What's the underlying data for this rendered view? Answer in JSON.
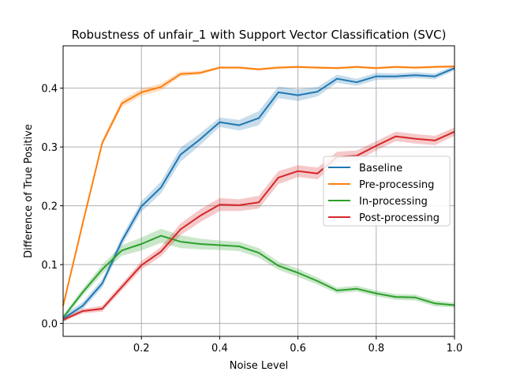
{
  "chart_data": {
    "type": "line",
    "title": "Robustness of unfair_1 with Support Vector Classification (SVC)",
    "xlabel": "Noise Level",
    "ylabel": "Difference of True Positive",
    "xlim": [
      0.0,
      1.0
    ],
    "ylim": [
      -0.022,
      0.472
    ],
    "xticks": [
      0.2,
      0.4,
      0.6,
      0.8,
      1.0
    ],
    "xtick_labels": [
      "0.2",
      "0.4",
      "0.6",
      "0.8",
      "1.0"
    ],
    "yticks": [
      0.0,
      0.1,
      0.2,
      0.3,
      0.4
    ],
    "ytick_labels": [
      "0.0",
      "0.1",
      "0.2",
      "0.3",
      "0.4"
    ],
    "grid": true,
    "legend_position": "center-right",
    "x": [
      0.0,
      0.05,
      0.1,
      0.15,
      0.2,
      0.25,
      0.3,
      0.35,
      0.4,
      0.45,
      0.5,
      0.55,
      0.6,
      0.65,
      0.7,
      0.75,
      0.8,
      0.85,
      0.9,
      0.95,
      1.0
    ],
    "series": [
      {
        "name": "Baseline",
        "color": "#1f77b4",
        "values": [
          0.008,
          0.03,
          0.068,
          0.14,
          0.199,
          0.231,
          0.287,
          0.313,
          0.342,
          0.337,
          0.349,
          0.393,
          0.388,
          0.394,
          0.416,
          0.41,
          0.42,
          0.42,
          0.422,
          0.42,
          0.434
        ],
        "band": [
          0.006,
          0.006,
          0.007,
          0.008,
          0.009,
          0.01,
          0.012,
          0.01,
          0.008,
          0.009,
          0.012,
          0.01,
          0.01,
          0.008,
          0.007,
          0.006,
          0.006,
          0.005,
          0.005,
          0.005,
          0.004
        ]
      },
      {
        "name": "Pre-processing",
        "color": "#ff7f0e",
        "values": [
          0.03,
          0.17,
          0.307,
          0.374,
          0.393,
          0.402,
          0.424,
          0.426,
          0.435,
          0.435,
          0.432,
          0.435,
          0.436,
          0.435,
          0.434,
          0.436,
          0.434,
          0.436,
          0.435,
          0.436,
          0.437
        ],
        "band": [
          0.004,
          0.005,
          0.005,
          0.006,
          0.006,
          0.006,
          0.004,
          0.003,
          0.002,
          0.002,
          0.002,
          0.002,
          0.002,
          0.002,
          0.002,
          0.002,
          0.002,
          0.002,
          0.002,
          0.002,
          0.002
        ]
      },
      {
        "name": "In-processing",
        "color": "#2ca02c",
        "values": [
          0.01,
          0.053,
          0.092,
          0.124,
          0.135,
          0.149,
          0.139,
          0.135,
          0.133,
          0.131,
          0.12,
          0.098,
          0.086,
          0.072,
          0.056,
          0.059,
          0.051,
          0.045,
          0.044,
          0.034,
          0.031
        ],
        "band": [
          0.004,
          0.006,
          0.008,
          0.009,
          0.011,
          0.012,
          0.011,
          0.009,
          0.008,
          0.008,
          0.008,
          0.007,
          0.007,
          0.006,
          0.005,
          0.005,
          0.005,
          0.005,
          0.005,
          0.005,
          0.004
        ]
      },
      {
        "name": "Post-processing",
        "color": "#d62728",
        "values": [
          0.006,
          0.021,
          0.025,
          0.062,
          0.099,
          0.122,
          0.16,
          0.183,
          0.202,
          0.201,
          0.206,
          0.248,
          0.259,
          0.255,
          0.283,
          0.285,
          0.302,
          0.318,
          0.314,
          0.311,
          0.326
        ],
        "band": [
          0.003,
          0.004,
          0.005,
          0.006,
          0.007,
          0.008,
          0.01,
          0.011,
          0.011,
          0.01,
          0.011,
          0.011,
          0.01,
          0.01,
          0.009,
          0.009,
          0.008,
          0.008,
          0.008,
          0.008,
          0.007
        ]
      }
    ]
  }
}
